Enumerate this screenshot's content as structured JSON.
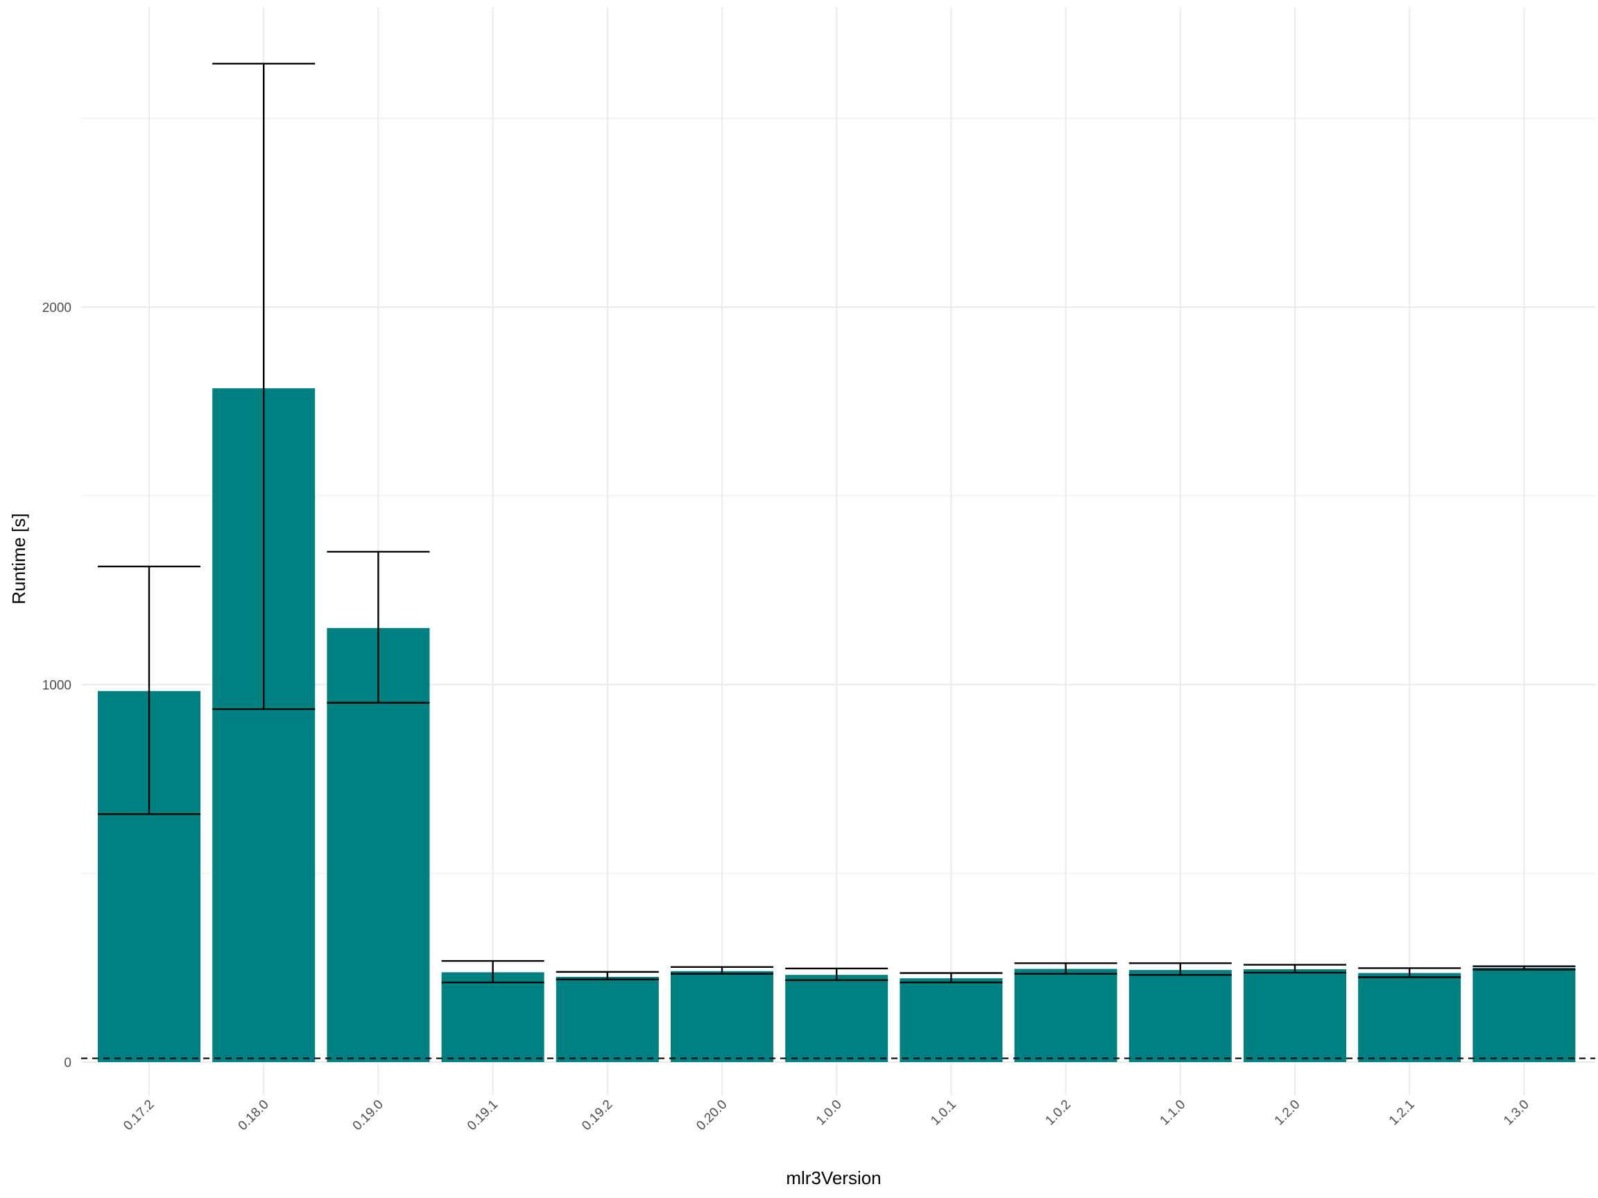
{
  "chart_data": {
    "type": "bar",
    "title": "",
    "xlabel": "mlr3Version",
    "ylabel": "Runtime [s]",
    "ylim": [
      -60,
      2790
    ],
    "grid": true,
    "legend": "none",
    "bar_color": "#008080",
    "errorbar_color": "#000000",
    "reference_line": {
      "y": 10,
      "style": "dashed",
      "color": "#000000"
    },
    "y_ticks": [
      0,
      1000,
      2000
    ],
    "y_minor_ticks": [
      500,
      1500,
      2500
    ],
    "categories": [
      "0.17.2",
      "0.18.0",
      "0.19.0",
      "0.19.1",
      "0.19.2",
      "0.20.0",
      "1.0.0",
      "1.0.1",
      "1.0.2",
      "1.1.0",
      "1.2.0",
      "1.2.1",
      "1.3.0"
    ],
    "values": [
      983,
      1785,
      1150,
      238,
      226,
      241,
      231,
      222,
      247,
      244,
      246,
      236,
      250
    ],
    "error_low": [
      657,
      935,
      952,
      211,
      219,
      234,
      217,
      211,
      234,
      231,
      237,
      225,
      245
    ],
    "error_high": [
      1313,
      2645,
      1352,
      268,
      239,
      252,
      248,
      236,
      262,
      262,
      258,
      249,
      254
    ]
  }
}
